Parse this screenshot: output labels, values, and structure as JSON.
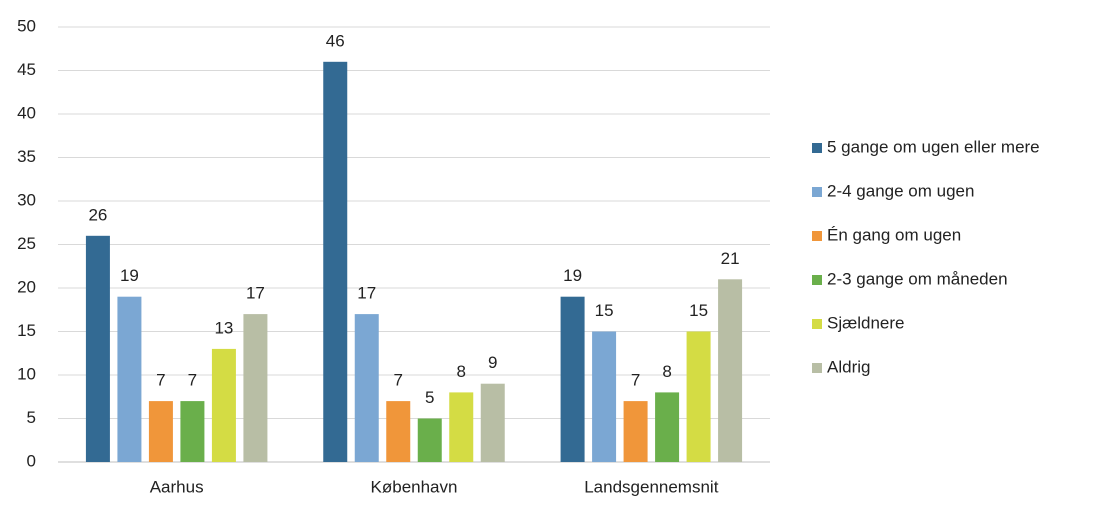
{
  "chart_data": {
    "type": "bar",
    "categories": [
      "Aarhus",
      "København",
      "Landsgennemsnit"
    ],
    "series": [
      {
        "name": "5 gange om ugen eller mere",
        "color": "#336a93",
        "values": [
          26,
          46,
          19
        ]
      },
      {
        "name": "2-4 gange om ugen",
        "color": "#7ba7d3",
        "values": [
          19,
          17,
          15
        ]
      },
      {
        "name": "Én gang om ugen",
        "color": "#f0963a",
        "values": [
          7,
          7,
          7
        ]
      },
      {
        "name": "2-3 gange om måneden",
        "color": "#6aaf4b",
        "values": [
          7,
          5,
          8
        ]
      },
      {
        "name": "Sjældnere",
        "color": "#d4dc44",
        "values": [
          13,
          8,
          15
        ]
      },
      {
        "name": "Aldrig",
        "color": "#b8bea5",
        "values": [
          17,
          9,
          21
        ]
      }
    ],
    "ylim": [
      0,
      50
    ],
    "yticks": [
      0,
      5,
      10,
      15,
      20,
      25,
      30,
      35,
      40,
      45,
      50
    ],
    "grid": true,
    "legend": "right"
  }
}
